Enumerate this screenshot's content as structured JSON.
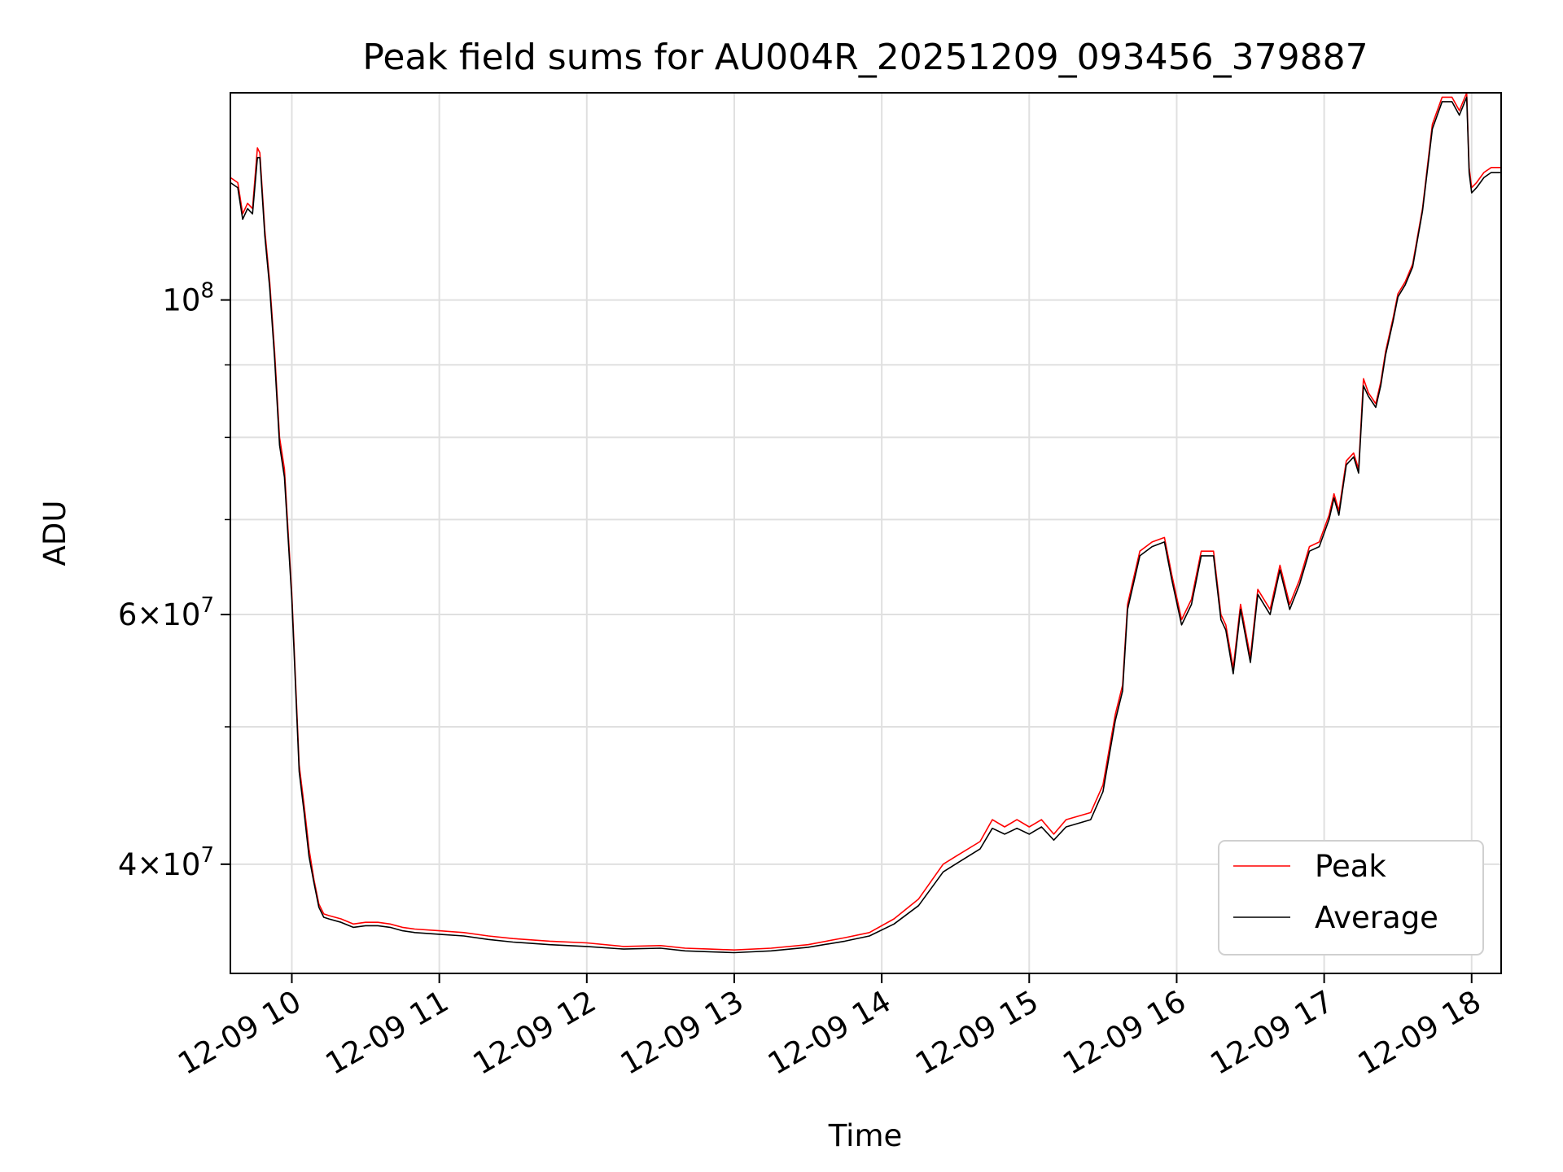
{
  "chart_data": {
    "type": "line",
    "title": "Peak field sums for AU004R_20251209_093456_379887",
    "xlabel": "Time",
    "ylabel": "ADU",
    "yscale": "log",
    "ylim": [
      33500000,
      140000000
    ],
    "xlim": [
      "2025-12-09 09:35",
      "2025-12-09 18:12"
    ],
    "grid": true,
    "legend": "lower-right",
    "x_ticks": [
      "12-09 10",
      "12-09 11",
      "12-09 12",
      "12-09 13",
      "12-09 14",
      "12-09 15",
      "12-09 16",
      "12-09 17",
      "12-09 18"
    ],
    "y_ticks": [
      {
        "value": 40000000,
        "base": "4",
        "exp": "7"
      },
      {
        "value": 60000000,
        "base": "6",
        "exp": "7"
      },
      {
        "value": 100000000,
        "base": "",
        "exp": "8"
      }
    ],
    "y_minor_ticks": [
      50000000,
      70000000,
      80000000,
      90000000
    ],
    "series": [
      {
        "name": "Peak",
        "color": "#ff0000",
        "x": [
          "2025-12-09 09:35",
          "2025-12-09 09:38",
          "2025-12-09 09:40",
          "2025-12-09 09:42",
          "2025-12-09 09:44",
          "2025-12-09 09:46",
          "2025-12-09 09:47",
          "2025-12-09 09:49",
          "2025-12-09 09:51",
          "2025-12-09 09:53",
          "2025-12-09 09:55",
          "2025-12-09 09:57",
          "2025-12-09 10:00",
          "2025-12-09 10:03",
          "2025-12-09 10:05",
          "2025-12-09 10:07",
          "2025-12-09 10:09",
          "2025-12-09 10:11",
          "2025-12-09 10:13",
          "2025-12-09 10:15",
          "2025-12-09 10:20",
          "2025-12-09 10:25",
          "2025-12-09 10:30",
          "2025-12-09 10:35",
          "2025-12-09 10:40",
          "2025-12-09 10:45",
          "2025-12-09 10:50",
          "2025-12-09 11:00",
          "2025-12-09 11:10",
          "2025-12-09 11:20",
          "2025-12-09 11:30",
          "2025-12-09 11:45",
          "2025-12-09 12:00",
          "2025-12-09 12:15",
          "2025-12-09 12:30",
          "2025-12-09 12:40",
          "2025-12-09 12:50",
          "2025-12-09 13:00",
          "2025-12-09 13:15",
          "2025-12-09 13:30",
          "2025-12-09 13:45",
          "2025-12-09 13:55",
          "2025-12-09 14:05",
          "2025-12-09 14:15",
          "2025-12-09 14:25",
          "2025-12-09 14:30",
          "2025-12-09 14:40",
          "2025-12-09 14:45",
          "2025-12-09 14:50",
          "2025-12-09 14:55",
          "2025-12-09 15:00",
          "2025-12-09 15:05",
          "2025-12-09 15:10",
          "2025-12-09 15:15",
          "2025-12-09 15:25",
          "2025-12-09 15:30",
          "2025-12-09 15:35",
          "2025-12-09 15:38",
          "2025-12-09 15:40",
          "2025-12-09 15:45",
          "2025-12-09 15:50",
          "2025-12-09 15:55",
          "2025-12-09 15:58",
          "2025-12-09 16:02",
          "2025-12-09 16:06",
          "2025-12-09 16:10",
          "2025-12-09 16:15",
          "2025-12-09 16:18",
          "2025-12-09 16:20",
          "2025-12-09 16:23",
          "2025-12-09 16:26",
          "2025-12-09 16:30",
          "2025-12-09 16:33",
          "2025-12-09 16:38",
          "2025-12-09 16:42",
          "2025-12-09 16:46",
          "2025-12-09 16:50",
          "2025-12-09 16:54",
          "2025-12-09 16:58",
          "2025-12-09 17:02",
          "2025-12-09 17:04",
          "2025-12-09 17:06",
          "2025-12-09 17:09",
          "2025-12-09 17:12",
          "2025-12-09 17:14",
          "2025-12-09 17:16",
          "2025-12-09 17:18",
          "2025-12-09 17:21",
          "2025-12-09 17:23",
          "2025-12-09 17:25",
          "2025-12-09 17:28",
          "2025-12-09 17:30",
          "2025-12-09 17:33",
          "2025-12-09 17:36",
          "2025-12-09 17:40",
          "2025-12-09 17:44",
          "2025-12-09 17:48",
          "2025-12-09 17:52",
          "2025-12-09 17:55",
          "2025-12-09 17:58",
          "2025-12-09 17:59",
          "2025-12-09 18:00",
          "2025-12-09 18:02",
          "2025-12-09 18:05",
          "2025-12-09 18:08",
          "2025-12-09 18:12"
        ],
        "y": [
          122000000,
          121000000,
          115000000,
          117000000,
          116000000,
          128000000,
          127000000,
          112000000,
          103000000,
          92000000,
          80000000,
          76000000,
          62000000,
          47000000,
          44000000,
          41000000,
          39000000,
          37500000,
          36900000,
          36800000,
          36600000,
          36300000,
          36400000,
          36400000,
          36300000,
          36100000,
          36000000,
          35900000,
          35800000,
          35600000,
          35450000,
          35300000,
          35200000,
          35000000,
          35050000,
          34900000,
          34850000,
          34800000,
          34900000,
          35100000,
          35500000,
          35800000,
          36600000,
          37800000,
          40000000,
          40500000,
          41500000,
          43000000,
          42500000,
          43000000,
          42500000,
          43000000,
          42000000,
          43000000,
          43500000,
          45500000,
          51000000,
          53500000,
          61000000,
          66500000,
          67500000,
          68000000,
          64000000,
          59500000,
          61500000,
          66500000,
          66500000,
          60000000,
          59000000,
          55000000,
          61000000,
          56000000,
          62500000,
          60500000,
          65000000,
          61000000,
          63500000,
          67000000,
          67500000,
          70500000,
          73000000,
          71000000,
          77000000,
          78000000,
          76000000,
          88000000,
          86000000,
          84500000,
          87500000,
          92000000,
          97000000,
          101000000,
          103000000,
          106000000,
          116000000,
          133000000,
          139000000,
          139000000,
          136000000,
          140000000,
          124000000,
          120000000,
          121000000,
          123000000,
          124000000,
          124000000
        ]
      },
      {
        "name": "Average",
        "color": "#000000",
        "x": [
          "2025-12-09 09:35",
          "2025-12-09 09:38",
          "2025-12-09 09:40",
          "2025-12-09 09:42",
          "2025-12-09 09:44",
          "2025-12-09 09:46",
          "2025-12-09 09:47",
          "2025-12-09 09:49",
          "2025-12-09 09:51",
          "2025-12-09 09:53",
          "2025-12-09 09:55",
          "2025-12-09 09:57",
          "2025-12-09 10:00",
          "2025-12-09 10:03",
          "2025-12-09 10:05",
          "2025-12-09 10:07",
          "2025-12-09 10:09",
          "2025-12-09 10:11",
          "2025-12-09 10:13",
          "2025-12-09 10:15",
          "2025-12-09 10:20",
          "2025-12-09 10:25",
          "2025-12-09 10:30",
          "2025-12-09 10:35",
          "2025-12-09 10:40",
          "2025-12-09 10:45",
          "2025-12-09 10:50",
          "2025-12-09 11:00",
          "2025-12-09 11:10",
          "2025-12-09 11:20",
          "2025-12-09 11:30",
          "2025-12-09 11:45",
          "2025-12-09 12:00",
          "2025-12-09 12:15",
          "2025-12-09 12:30",
          "2025-12-09 12:40",
          "2025-12-09 12:50",
          "2025-12-09 13:00",
          "2025-12-09 13:15",
          "2025-12-09 13:30",
          "2025-12-09 13:45",
          "2025-12-09 13:55",
          "2025-12-09 14:05",
          "2025-12-09 14:15",
          "2025-12-09 14:25",
          "2025-12-09 14:30",
          "2025-12-09 14:40",
          "2025-12-09 14:45",
          "2025-12-09 14:50",
          "2025-12-09 14:55",
          "2025-12-09 15:00",
          "2025-12-09 15:05",
          "2025-12-09 15:10",
          "2025-12-09 15:15",
          "2025-12-09 15:25",
          "2025-12-09 15:30",
          "2025-12-09 15:35",
          "2025-12-09 15:38",
          "2025-12-09 15:40",
          "2025-12-09 15:45",
          "2025-12-09 15:50",
          "2025-12-09 15:55",
          "2025-12-09 15:58",
          "2025-12-09 16:02",
          "2025-12-09 16:06",
          "2025-12-09 16:10",
          "2025-12-09 16:15",
          "2025-12-09 16:18",
          "2025-12-09 16:20",
          "2025-12-09 16:23",
          "2025-12-09 16:26",
          "2025-12-09 16:30",
          "2025-12-09 16:33",
          "2025-12-09 16:38",
          "2025-12-09 16:42",
          "2025-12-09 16:46",
          "2025-12-09 16:50",
          "2025-12-09 16:54",
          "2025-12-09 16:58",
          "2025-12-09 17:02",
          "2025-12-09 17:04",
          "2025-12-09 17:06",
          "2025-12-09 17:09",
          "2025-12-09 17:12",
          "2025-12-09 17:14",
          "2025-12-09 17:16",
          "2025-12-09 17:18",
          "2025-12-09 17:21",
          "2025-12-09 17:23",
          "2025-12-09 17:25",
          "2025-12-09 17:28",
          "2025-12-09 17:30",
          "2025-12-09 17:33",
          "2025-12-09 17:36",
          "2025-12-09 17:40",
          "2025-12-09 17:44",
          "2025-12-09 17:48",
          "2025-12-09 17:52",
          "2025-12-09 17:55",
          "2025-12-09 17:58",
          "2025-12-09 17:59",
          "2025-12-09 18:00",
          "2025-12-09 18:02",
          "2025-12-09 18:05",
          "2025-12-09 18:08",
          "2025-12-09 18:12"
        ],
        "y": [
          121000000,
          120000000,
          114000000,
          116000000,
          115000000,
          126000000,
          126000000,
          111000000,
          102000000,
          91000000,
          79000000,
          75000000,
          61500000,
          46500000,
          43500000,
          40500000,
          38800000,
          37300000,
          36700000,
          36600000,
          36400000,
          36100000,
          36200000,
          36200000,
          36100000,
          35900000,
          35800000,
          35700000,
          35600000,
          35400000,
          35250000,
          35100000,
          35000000,
          34850000,
          34900000,
          34750000,
          34700000,
          34650000,
          34750000,
          34950000,
          35300000,
          35600000,
          36300000,
          37400000,
          39500000,
          40000000,
          41000000,
          42400000,
          42000000,
          42400000,
          42000000,
          42500000,
          41600000,
          42500000,
          43000000,
          45000000,
          50500000,
          53000000,
          60500000,
          66000000,
          67000000,
          67500000,
          63500000,
          59000000,
          61000000,
          66000000,
          66000000,
          59500000,
          58500000,
          54500000,
          60500000,
          55500000,
          62000000,
          60000000,
          64500000,
          60500000,
          63000000,
          66500000,
          67000000,
          70000000,
          72500000,
          70500000,
          76500000,
          77500000,
          75500000,
          87000000,
          85500000,
          84000000,
          87000000,
          91500000,
          96500000,
          100500000,
          102500000,
          105500000,
          115500000,
          132000000,
          138000000,
          138000000,
          135000000,
          139000000,
          123000000,
          119000000,
          120000000,
          122000000,
          123000000,
          123000000
        ]
      }
    ]
  }
}
